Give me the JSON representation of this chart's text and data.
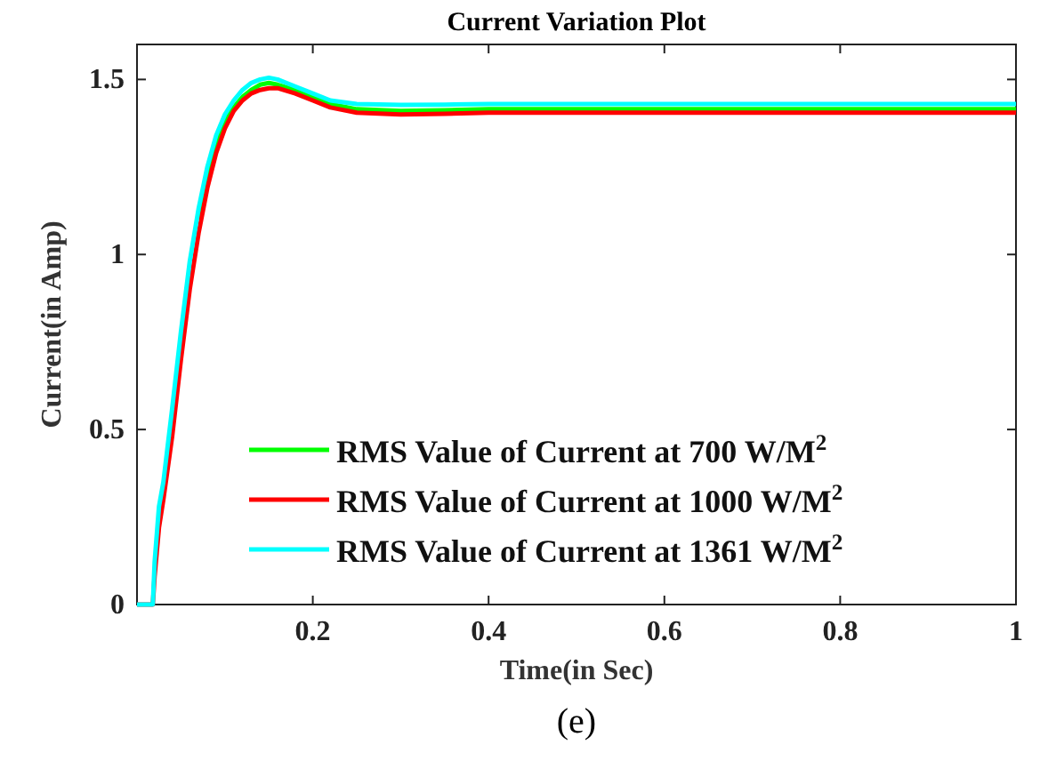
{
  "chart_data": {
    "type": "line",
    "title": "Current Variation Plot",
    "xlabel": "Time(in Sec)",
    "ylabel": "Current(in Amp)",
    "annotations": [
      "(e)"
    ],
    "x": [
      0,
      0.018,
      0.02,
      0.025,
      0.03,
      0.04,
      0.05,
      0.06,
      0.07,
      0.08,
      0.09,
      0.1,
      0.11,
      0.12,
      0.13,
      0.14,
      0.15,
      0.16,
      0.18,
      0.2,
      0.22,
      0.25,
      0.3,
      0.35,
      0.4,
      0.5,
      0.6,
      0.7,
      0.8,
      0.9,
      1
    ],
    "xlim": [
      0,
      1
    ],
    "ylim": [
      0,
      1.6
    ],
    "xticks": [
      0.2,
      0.4,
      0.6,
      0.8,
      1
    ],
    "yticks": [
      0,
      0.5,
      1,
      1.5
    ],
    "legend": "bottom",
    "line_style": "solid",
    "marker": "none",
    "series": [
      {
        "name": "RMS Value of Current at 700 W/M$^{2}$",
        "color": "#00ff00",
        "values": [
          null,
          null,
          null,
          null,
          null,
          null,
          null,
          null,
          1.1,
          1.22,
          1.31,
          1.38,
          1.42,
          1.45,
          1.47,
          1.485,
          1.49,
          1.485,
          1.47,
          1.45,
          1.43,
          1.415,
          1.41,
          1.412,
          1.415,
          1.415,
          1.415,
          1.415,
          1.415,
          1.415,
          1.415
        ]
      },
      {
        "name": "RMS Value of Current at 1000 W/M$^{2}$",
        "color": "#ff0000",
        "values": [
          0,
          0,
          0.08,
          0.22,
          0.3,
          0.48,
          0.7,
          0.9,
          1.06,
          1.19,
          1.29,
          1.36,
          1.41,
          1.44,
          1.46,
          1.47,
          1.475,
          1.475,
          1.46,
          1.44,
          1.42,
          1.405,
          1.4,
          1.402,
          1.405,
          1.405,
          1.405,
          1.405,
          1.405,
          1.405,
          1.405
        ]
      },
      {
        "name": "RMS Value of Current at 1361 W/M$^{2}$",
        "color": "#00ffff",
        "values": [
          0,
          0,
          0.12,
          0.28,
          0.35,
          0.56,
          0.78,
          0.98,
          1.13,
          1.25,
          1.34,
          1.4,
          1.44,
          1.47,
          1.49,
          1.5,
          1.505,
          1.5,
          1.48,
          1.46,
          1.44,
          1.43,
          1.427,
          1.428,
          1.43,
          1.43,
          1.43,
          1.43,
          1.43,
          1.43,
          1.43
        ]
      }
    ]
  }
}
